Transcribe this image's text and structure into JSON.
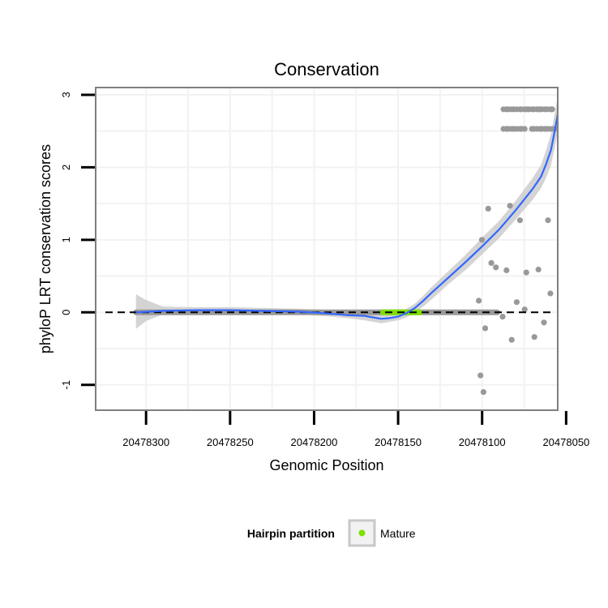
{
  "chart_data": {
    "type": "scatter",
    "title": "Conservation",
    "xlabel": "Genomic Position",
    "ylabel": "phyloP LRT conservation scores",
    "x_reversed": true,
    "xlim": [
      20478330,
      20478055
    ],
    "ylim": [
      -1.35,
      3.1
    ],
    "x_ticks": [
      20478300,
      20478250,
      20478200,
      20478150,
      20478100,
      20478050
    ],
    "x_tick_labels": [
      "20478300",
      "20478250",
      "20478200",
      "20478150",
      "20478100",
      "20478050"
    ],
    "y_ticks": [
      -1,
      0,
      1,
      2,
      3
    ],
    "y_tick_labels": [
      "-1",
      "0",
      "1",
      "2",
      "3"
    ],
    "reference_line": {
      "y": 0,
      "style": "dashed"
    },
    "legend": {
      "title": "Hairpin partition",
      "entries": [
        {
          "label": "Mature",
          "color": "#7fe000"
        }
      ],
      "position": "bottom"
    },
    "colors": {
      "points": "#999999",
      "mature_points": "#7fe000",
      "smooth_line": "#3366ff",
      "ribbon": "#cccccc",
      "panel_border": "#7f7f7f",
      "grid": "#f2f2f2"
    },
    "baseline_segments": [
      {
        "name": "zero-score-run",
        "x_from": 20478306,
        "x_to": 20478091,
        "y": 0,
        "color": "#999999"
      },
      {
        "name": "mature-zero-run",
        "x_from": 20478159,
        "x_to": 20478137,
        "y": 0,
        "color": "#7fe000"
      }
    ],
    "series": [
      {
        "name": "Scores",
        "color": "#999999",
        "points": [
          [
            20478087.3,
            2.8
          ],
          [
            20478085.5,
            2.8
          ],
          [
            20478084.3,
            2.8
          ],
          [
            20478082.4,
            2.8
          ],
          [
            20478081.3,
            2.8
          ],
          [
            20478079.4,
            2.8
          ],
          [
            20478077.5,
            2.8
          ],
          [
            20478076.6,
            2.8
          ],
          [
            20478074.2,
            2.8
          ],
          [
            20478072.3,
            2.8
          ],
          [
            20478070.4,
            2.8
          ],
          [
            20478069.3,
            2.8
          ],
          [
            20478067.4,
            2.8
          ],
          [
            20478065.5,
            2.8
          ],
          [
            20478064.6,
            2.8
          ],
          [
            20478062.7,
            2.8
          ],
          [
            20478061.3,
            2.8
          ],
          [
            20478059.4,
            2.8
          ],
          [
            20478058.3,
            2.8
          ],
          [
            20478066.5,
            2.8
          ],
          [
            20478072.8,
            2.8
          ],
          [
            20478074.7,
            2.8
          ],
          [
            20478058.7,
            2.8
          ],
          [
            20478087.3,
            2.53
          ],
          [
            20478085.5,
            2.53
          ],
          [
            20478084.3,
            2.53
          ],
          [
            20478082.4,
            2.53
          ],
          [
            20478081.3,
            2.53
          ],
          [
            20478079.4,
            2.53
          ],
          [
            20478077.5,
            2.53
          ],
          [
            20478076.6,
            2.53
          ],
          [
            20478074.7,
            2.53
          ],
          [
            20478070.4,
            2.53
          ],
          [
            20478069.3,
            2.53
          ],
          [
            20478067.4,
            2.53
          ],
          [
            20478065.5,
            2.53
          ],
          [
            20478064.6,
            2.53
          ],
          [
            20478062.7,
            2.53
          ],
          [
            20478061.3,
            2.53
          ],
          [
            20478059.4,
            2.53
          ],
          [
            20478057.5,
            2.53
          ],
          [
            20478056.6,
            2.53
          ],
          [
            20478096.4,
            1.43
          ],
          [
            20478083.4,
            1.47
          ],
          [
            20478077.5,
            1.27
          ],
          [
            20478060.8,
            1.27
          ],
          [
            20478100.1,
            1.0
          ],
          [
            20478094.5,
            0.68
          ],
          [
            20478091.8,
            0.62
          ],
          [
            20478085.5,
            0.58
          ],
          [
            20478073.7,
            0.55
          ],
          [
            20478066.5,
            0.59
          ],
          [
            20478059.4,
            0.26
          ],
          [
            20478102.0,
            0.16
          ],
          [
            20478079.4,
            0.14
          ],
          [
            20478074.7,
            0.04
          ],
          [
            20478098.2,
            -0.22
          ],
          [
            20478087.8,
            -0.06
          ],
          [
            20478082.4,
            -0.38
          ],
          [
            20478068.9,
            -0.34
          ],
          [
            20478063.2,
            -0.14
          ],
          [
            20478101.0,
            -0.87
          ],
          [
            20478099.2,
            -1.1
          ]
        ]
      }
    ],
    "smooth_fit": [
      [
        20478306,
        0.0
      ],
      [
        20478290,
        0.02
      ],
      [
        20478270,
        0.03
      ],
      [
        20478250,
        0.03
      ],
      [
        20478230,
        0.02
      ],
      [
        20478210,
        0.01
      ],
      [
        20478195,
        -0.01
      ],
      [
        20478180,
        -0.04
      ],
      [
        20478170,
        -0.05
      ],
      [
        20478165,
        -0.07
      ],
      [
        20478160,
        -0.09
      ],
      [
        20478155,
        -0.08
      ],
      [
        20478150,
        -0.06
      ],
      [
        20478145,
        -0.01
      ],
      [
        20478140,
        0.06
      ],
      [
        20478135,
        0.16
      ],
      [
        20478130,
        0.27
      ],
      [
        20478120,
        0.48
      ],
      [
        20478110,
        0.69
      ],
      [
        20478100,
        0.91
      ],
      [
        20478090,
        1.14
      ],
      [
        20478080,
        1.41
      ],
      [
        20478070,
        1.7
      ],
      [
        20478065,
        1.87
      ],
      [
        20478062,
        2.04
      ],
      [
        20478059,
        2.24
      ],
      [
        20478057,
        2.48
      ],
      [
        20478055,
        2.73
      ]
    ],
    "confidence_band": [
      [
        20478306,
        -0.23,
        0.25
      ],
      [
        20478300,
        -0.12,
        0.17
      ],
      [
        20478290,
        -0.03,
        0.08
      ],
      [
        20478270,
        -0.01,
        0.07
      ],
      [
        20478250,
        0.0,
        0.07
      ],
      [
        20478230,
        -0.01,
        0.06
      ],
      [
        20478210,
        -0.03,
        0.05
      ],
      [
        20478195,
        -0.05,
        0.03
      ],
      [
        20478180,
        -0.08,
        0.0
      ],
      [
        20478170,
        -0.11,
        0.0
      ],
      [
        20478165,
        -0.13,
        -0.01
      ],
      [
        20478160,
        -0.15,
        -0.03
      ],
      [
        20478155,
        -0.13,
        -0.02
      ],
      [
        20478150,
        -0.11,
        -0.01
      ],
      [
        20478145,
        -0.07,
        0.05
      ],
      [
        20478140,
        0.0,
        0.12
      ],
      [
        20478135,
        0.08,
        0.23
      ],
      [
        20478130,
        0.18,
        0.35
      ],
      [
        20478120,
        0.39,
        0.57
      ],
      [
        20478110,
        0.58,
        0.79
      ],
      [
        20478100,
        0.8,
        1.03
      ],
      [
        20478090,
        1.02,
        1.26
      ],
      [
        20478080,
        1.28,
        1.54
      ],
      [
        20478070,
        1.55,
        1.85
      ],
      [
        20478065,
        1.71,
        2.03
      ],
      [
        20478062,
        1.85,
        2.23
      ],
      [
        20478059,
        2.03,
        2.46
      ],
      [
        20478057,
        2.25,
        2.72
      ],
      [
        20478055,
        2.47,
        2.98
      ]
    ]
  }
}
